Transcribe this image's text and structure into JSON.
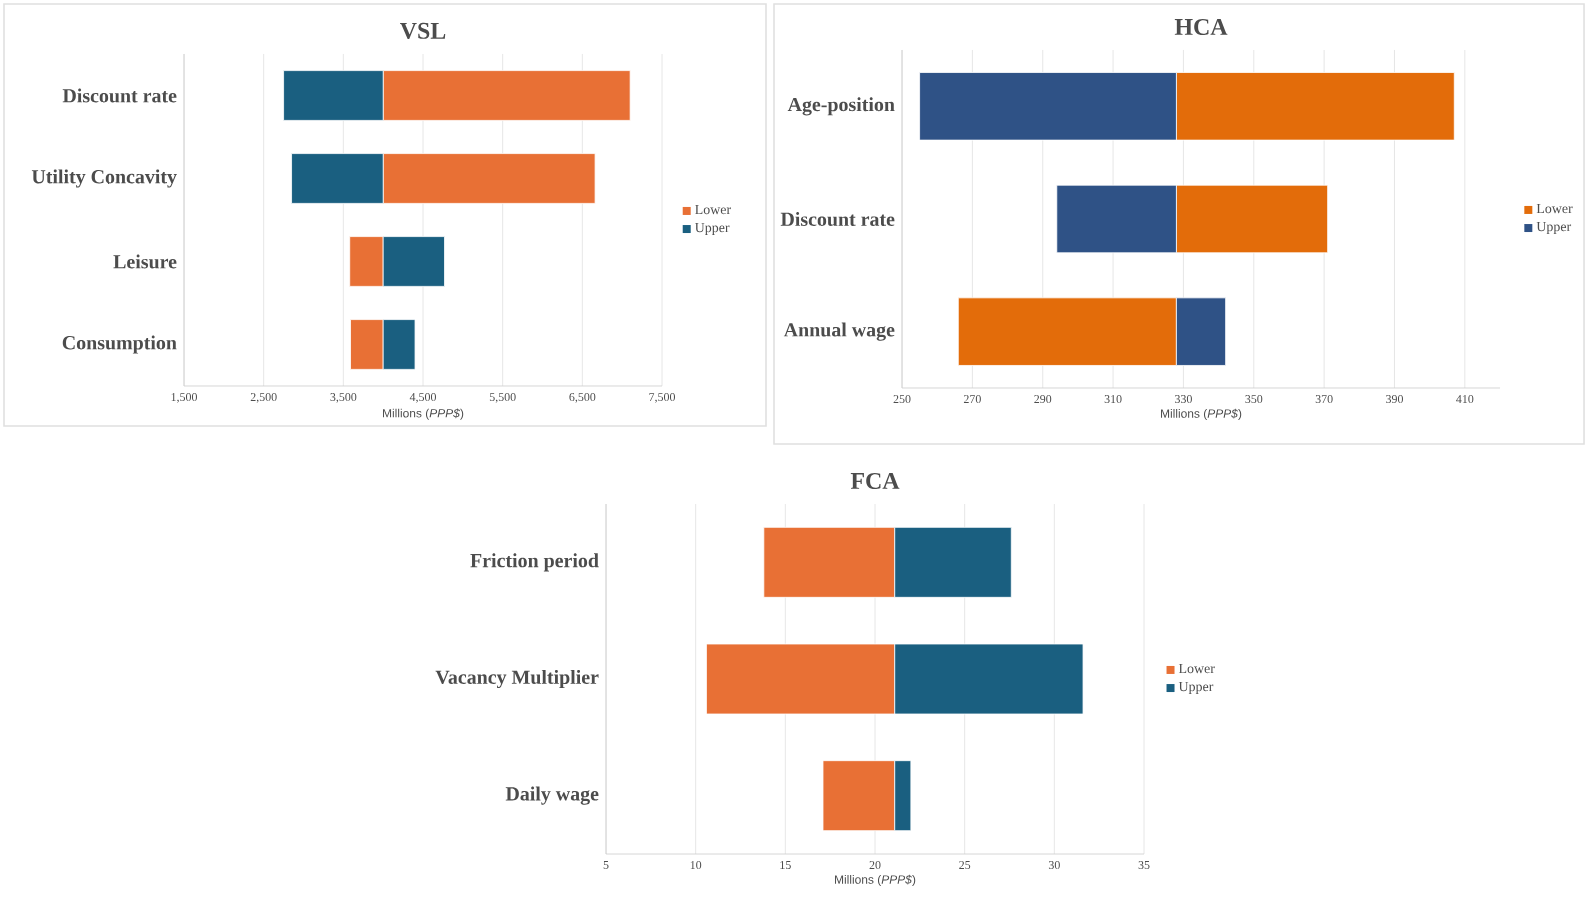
{
  "chart_data": [
    {
      "type": "bar",
      "orientation": "horizontal",
      "title": "VSL",
      "xlabel": "Millions (*PPP$*)",
      "categories": [
        "Discount rate",
        "Utility Concavity",
        "Leisure",
        "Consumption"
      ],
      "series": [
        {
          "name": "Lower",
          "color": "#e87035",
          "base": [
            4000,
            4000,
            4000,
            4000
          ],
          "values": [
            3100,
            2660,
            -420,
            -410
          ]
        },
        {
          "name": "Upper",
          "color": "#1a5f80",
          "base": [
            4000,
            4000,
            4000,
            4000
          ],
          "values": [
            -1250,
            -1150,
            770,
            400
          ]
        }
      ],
      "xlim": [
        1500,
        7500
      ],
      "xticks": [
        {
          "value": 1500,
          "label": "1,500"
        },
        {
          "value": 2500,
          "label": "2,500"
        },
        {
          "value": 3500,
          "label": "3,500"
        },
        {
          "value": 4500,
          "label": "4,500"
        },
        {
          "value": 5500,
          "label": "5,500"
        },
        {
          "value": 6500,
          "label": "6,500"
        },
        {
          "value": 7500,
          "label": "7,500"
        }
      ],
      "grid": "x",
      "legend": "right"
    },
    {
      "type": "bar",
      "orientation": "horizontal",
      "title": "HCA",
      "xlabel": "Millions (*PPP$*)",
      "categories": [
        "Age-position",
        "Discount rate",
        "Annual wage"
      ],
      "series": [
        {
          "name": "Lower",
          "color": "#e36c0a",
          "base": [
            328,
            328,
            328
          ],
          "values": [
            79,
            43,
            -62
          ]
        },
        {
          "name": "Upper",
          "color": "#2f5286",
          "base": [
            328,
            328,
            328
          ],
          "values": [
            -73,
            -34,
            14
          ]
        }
      ],
      "xlim": [
        250,
        420
      ],
      "xticks": [
        250,
        270,
        290,
        310,
        330,
        350,
        370,
        390,
        410
      ],
      "grid": "x",
      "legend": "right"
    },
    {
      "type": "bar",
      "orientation": "horizontal",
      "title": "FCA",
      "xlabel": "Millions (*PPP$*)",
      "categories": [
        "Friction period",
        "Vacancy Multiplier",
        "Daily wage"
      ],
      "series": [
        {
          "name": "Lower",
          "color": "#e87035",
          "base": [
            21.1,
            21.1,
            21.1
          ],
          "values": [
            -7.3,
            -10.5,
            -4.0
          ]
        },
        {
          "name": "Upper",
          "color": "#1a5f80",
          "base": [
            21.1,
            21.1,
            21.1
          ],
          "values": [
            6.5,
            10.5,
            0.9
          ]
        }
      ],
      "xlim": [
        5,
        35
      ],
      "xticks": [
        5,
        10,
        15,
        20,
        25,
        30,
        35
      ],
      "grid": "x",
      "legend": "right"
    }
  ]
}
